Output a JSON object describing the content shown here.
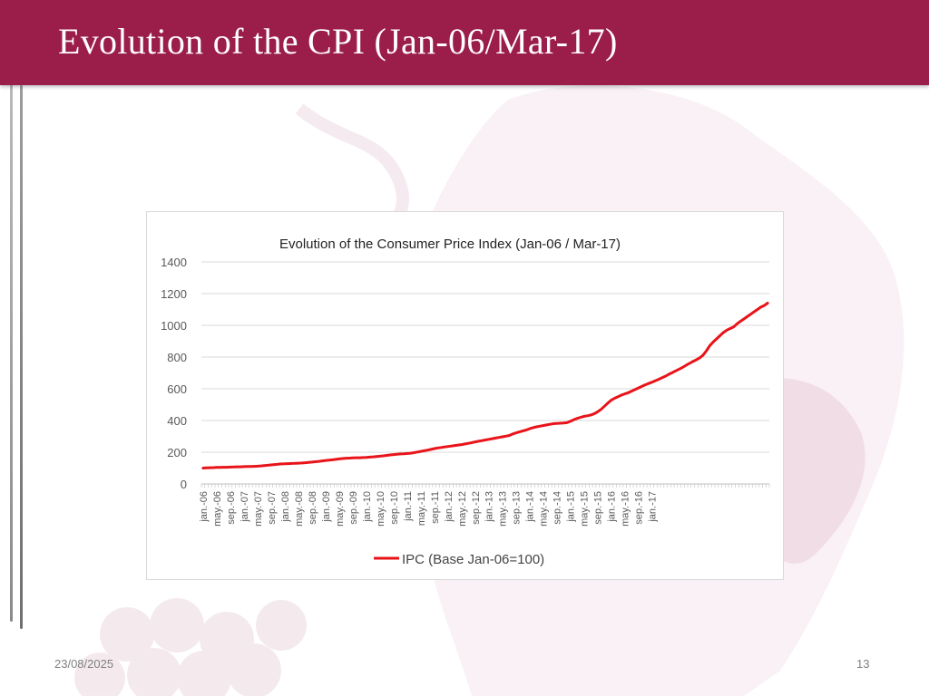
{
  "slide": {
    "title": "Evolution of the CPI (Jan-06/Mar-17)",
    "date": "23/08/2025",
    "page_number": "13",
    "colors": {
      "header": "#9b1d4a",
      "line": "#e8141a",
      "decor": "#f3e4ea"
    }
  },
  "chart_data": {
    "type": "line",
    "title": "Evolution of the Consumer Price Index (Jan-06 / Mar-17)",
    "xlabel": "",
    "ylabel": "",
    "ylim": [
      0,
      1400
    ],
    "yticks": [
      0,
      200,
      400,
      600,
      800,
      1000,
      1200,
      1400
    ],
    "grid": true,
    "legend_position": "bottom",
    "x_tick_labels": [
      "jan.-06",
      "may.-06",
      "sep.-06",
      "jan.-07",
      "may.-07",
      "sep.-07",
      "jan.-08",
      "may.-08",
      "sep.-08",
      "jan.-09",
      "may.-09",
      "sep.-09",
      "jan.-10",
      "may.-10",
      "sep.-10",
      "jan.-11",
      "may.-11",
      "sep.-11",
      "jan.-12",
      "may.-12",
      "sep.-12",
      "jan.-13",
      "may.-13",
      "sep.-13",
      "jan.-14",
      "may.-14",
      "sep.-14",
      "jan.-15",
      "may.-15",
      "sep.-15",
      "jan.-16",
      "may.-16",
      "sep.-16",
      "jan.-17"
    ],
    "x_tick_interval_months": 4,
    "series": [
      {
        "name": "IPC (Base Jan-06=100)",
        "color": "#e8141a",
        "start": "jan.-06",
        "values": [
          100,
          101,
          102,
          103,
          104,
          104,
          105,
          105,
          106,
          107,
          108,
          108,
          109,
          110,
          110,
          111,
          112,
          114,
          116,
          118,
          120,
          122,
          124,
          126,
          127,
          128,
          129,
          130,
          131,
          132,
          134,
          136,
          138,
          140,
          142,
          145,
          148,
          150,
          152,
          155,
          158,
          160,
          162,
          163,
          164,
          165,
          165,
          166,
          167,
          169,
          171,
          173,
          175,
          177,
          180,
          183,
          185,
          187,
          189,
          190,
          192,
          194,
          197,
          201,
          205,
          209,
          213,
          218,
          223,
          227,
          230,
          233,
          236,
          239,
          242,
          245,
          248,
          252,
          256,
          260,
          265,
          269,
          273,
          277,
          281,
          285,
          289,
          293,
          297,
          301,
          305,
          315,
          322,
          328,
          334,
          340,
          348,
          355,
          360,
          364,
          368,
          372,
          376,
          380,
          382,
          383,
          384,
          386,
          395,
          405,
          413,
          420,
          426,
          430,
          435,
          442,
          455,
          470,
          490,
          510,
          528,
          540,
          550,
          560,
          568,
          575,
          585,
          595,
          605,
          615,
          625,
          633,
          642,
          651,
          660,
          670,
          680,
          692,
          702,
          713,
          724,
          735,
          748,
          760,
          772,
          782,
          795,
          812,
          840,
          872,
          895,
          915,
          935,
          955,
          970,
          980,
          990,
          1010,
          1025,
          1040,
          1055,
          1070,
          1085,
          1100,
          1115,
          1125,
          1140
        ]
      }
    ]
  }
}
